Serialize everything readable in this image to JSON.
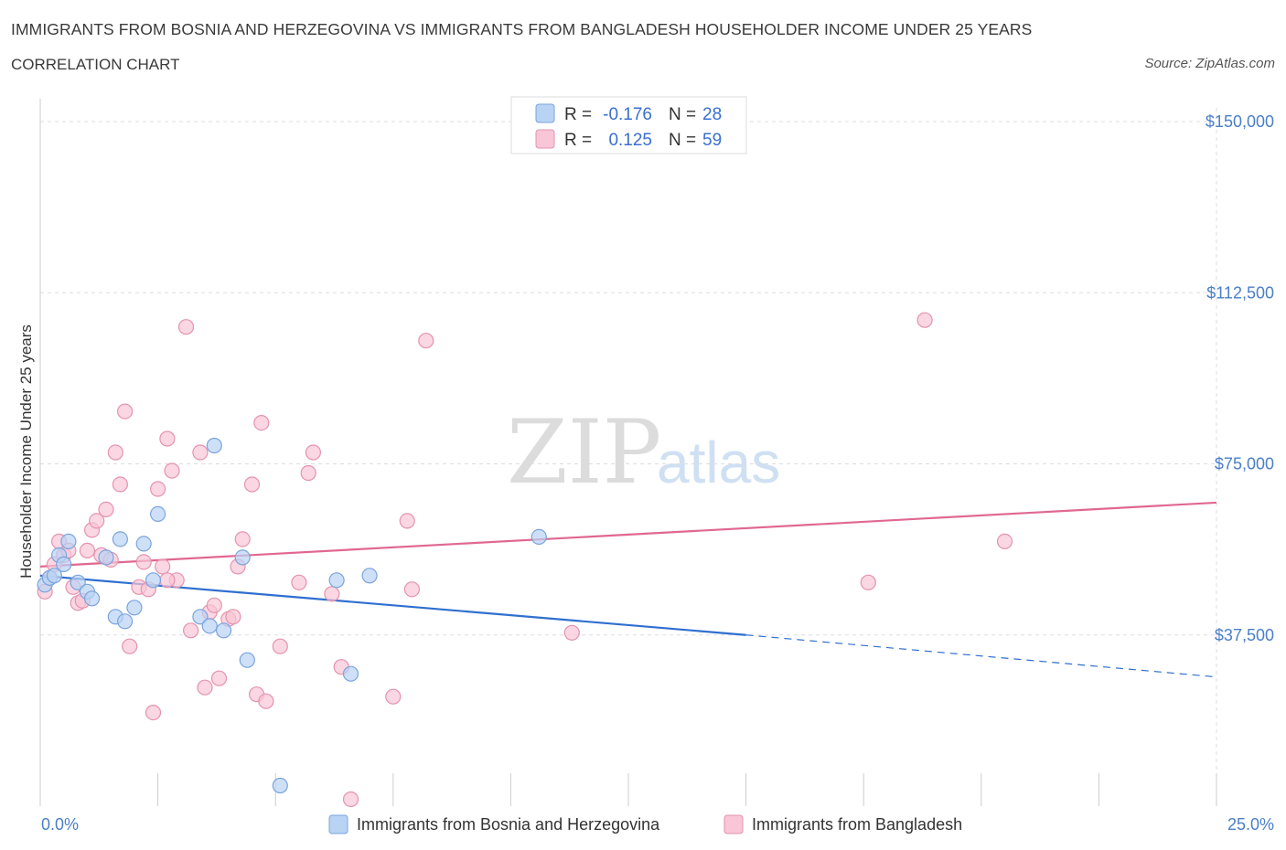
{
  "header": {
    "title": "IMMIGRANTS FROM BOSNIA AND HERZEGOVINA VS IMMIGRANTS FROM BANGLADESH HOUSEHOLDER INCOME UNDER 25 YEARS",
    "subtitle": "CORRELATION CHART",
    "source": "Source: ZipAtlas.com"
  },
  "watermark": {
    "zip": "ZIP",
    "atlas": "atlas"
  },
  "legend_top": {
    "rows": [
      {
        "r_label": "R =",
        "r_value": "-0.176",
        "n_label": "N =",
        "n_value": "28"
      },
      {
        "r_label": "R =",
        "r_value": "0.125",
        "n_label": "N =",
        "n_value": "59"
      }
    ]
  },
  "legend_bottom": [
    {
      "label": "Immigrants from Bosnia and Herzegovina"
    },
    {
      "label": "Immigrants from Bangladesh"
    }
  ],
  "chart_data": {
    "type": "scatter",
    "title": "IMMIGRANTS FROM BOSNIA AND HERZEGOVINA VS IMMIGRANTS FROM BANGLADESH HOUSEHOLDER INCOME UNDER 25 YEARS",
    "xlabel": "",
    "ylabel": "Householder Income Under 25 years",
    "xlim": [
      0,
      25
    ],
    "ylim": [
      0,
      150000
    ],
    "x_tick_labels": [
      "0.0%",
      "25.0%"
    ],
    "y_ticks": [
      37500,
      75000,
      112500,
      150000
    ],
    "y_tick_labels": [
      "$37,500",
      "$75,000",
      "$112,500",
      "$150,000"
    ],
    "grid": true,
    "colors": {
      "bosnia_fill": "#b9d3f5",
      "bosnia_stroke": "#7aa4dc",
      "bosnia_line": "#2f6fd0",
      "bangladesh_fill": "#f8c6d6",
      "bangladesh_stroke": "#e593ae",
      "bangladesh_line": "#e06890",
      "grid": "#dddddd",
      "tick": "#4a7fc8"
    },
    "series": [
      {
        "name": "Immigrants from Bosnia and Herzegovina",
        "r": -0.176,
        "n": 28,
        "trend": {
          "x0": 0,
          "y0": 50500,
          "x1": 15,
          "y1": 37500,
          "dash_to_x": 25,
          "dash_to_y": 28300
        },
        "points": [
          [
            0.1,
            48500
          ],
          [
            0.2,
            50000
          ],
          [
            0.3,
            50500
          ],
          [
            0.4,
            55000
          ],
          [
            0.5,
            53000
          ],
          [
            0.6,
            58000
          ],
          [
            0.8,
            49000
          ],
          [
            1.0,
            47000
          ],
          [
            1.1,
            45500
          ],
          [
            1.4,
            54500
          ],
          [
            1.6,
            41500
          ],
          [
            1.7,
            58500
          ],
          [
            1.8,
            40500
          ],
          [
            2.0,
            43500
          ],
          [
            2.2,
            57500
          ],
          [
            2.4,
            49500
          ],
          [
            2.5,
            64000
          ],
          [
            3.4,
            41500
          ],
          [
            3.6,
            39500
          ],
          [
            3.7,
            79000
          ],
          [
            3.9,
            38500
          ],
          [
            4.3,
            54500
          ],
          [
            4.4,
            32000
          ],
          [
            5.1,
            4500
          ],
          [
            6.3,
            49500
          ],
          [
            6.6,
            29000
          ],
          [
            7.0,
            50500
          ],
          [
            10.6,
            59000
          ]
        ]
      },
      {
        "name": "Immigrants from Bangladesh",
        "r": 0.125,
        "n": 59,
        "trend": {
          "x0": 0,
          "y0": 52500,
          "x1": 25,
          "y1": 66500
        },
        "points": [
          [
            0.1,
            47000
          ],
          [
            0.2,
            50000
          ],
          [
            0.3,
            53000
          ],
          [
            0.4,
            58000
          ],
          [
            0.5,
            55000
          ],
          [
            0.6,
            56000
          ],
          [
            0.7,
            48000
          ],
          [
            0.8,
            44500
          ],
          [
            0.9,
            45000
          ],
          [
            1.0,
            56000
          ],
          [
            1.1,
            60500
          ],
          [
            1.2,
            62500
          ],
          [
            1.3,
            55000
          ],
          [
            1.4,
            65000
          ],
          [
            1.5,
            54000
          ],
          [
            1.6,
            77500
          ],
          [
            1.7,
            70500
          ],
          [
            1.8,
            86500
          ],
          [
            1.9,
            35000
          ],
          [
            2.1,
            48000
          ],
          [
            2.2,
            53500
          ],
          [
            2.3,
            47500
          ],
          [
            2.4,
            20500
          ],
          [
            2.5,
            69500
          ],
          [
            2.6,
            52500
          ],
          [
            2.7,
            80500
          ],
          [
            2.8,
            73500
          ],
          [
            2.9,
            49500
          ],
          [
            3.1,
            105000
          ],
          [
            3.2,
            38500
          ],
          [
            3.4,
            77500
          ],
          [
            3.5,
            26000
          ],
          [
            3.6,
            42500
          ],
          [
            3.7,
            44000
          ],
          [
            3.8,
            28000
          ],
          [
            4.0,
            41000
          ],
          [
            4.1,
            41500
          ],
          [
            4.2,
            52500
          ],
          [
            4.3,
            58500
          ],
          [
            4.5,
            70500
          ],
          [
            4.6,
            24500
          ],
          [
            4.7,
            84000
          ],
          [
            4.8,
            23000
          ],
          [
            5.1,
            35000
          ],
          [
            5.5,
            49000
          ],
          [
            5.7,
            73000
          ],
          [
            5.8,
            77500
          ],
          [
            6.2,
            46500
          ],
          [
            6.4,
            30500
          ],
          [
            6.6,
            1500
          ],
          [
            7.5,
            24000
          ],
          [
            7.8,
            62500
          ],
          [
            7.9,
            47500
          ],
          [
            8.2,
            102000
          ],
          [
            11.3,
            38000
          ],
          [
            17.6,
            49000
          ],
          [
            18.8,
            106500
          ],
          [
            20.5,
            58000
          ],
          [
            2.7,
            49500
          ]
        ]
      }
    ]
  }
}
